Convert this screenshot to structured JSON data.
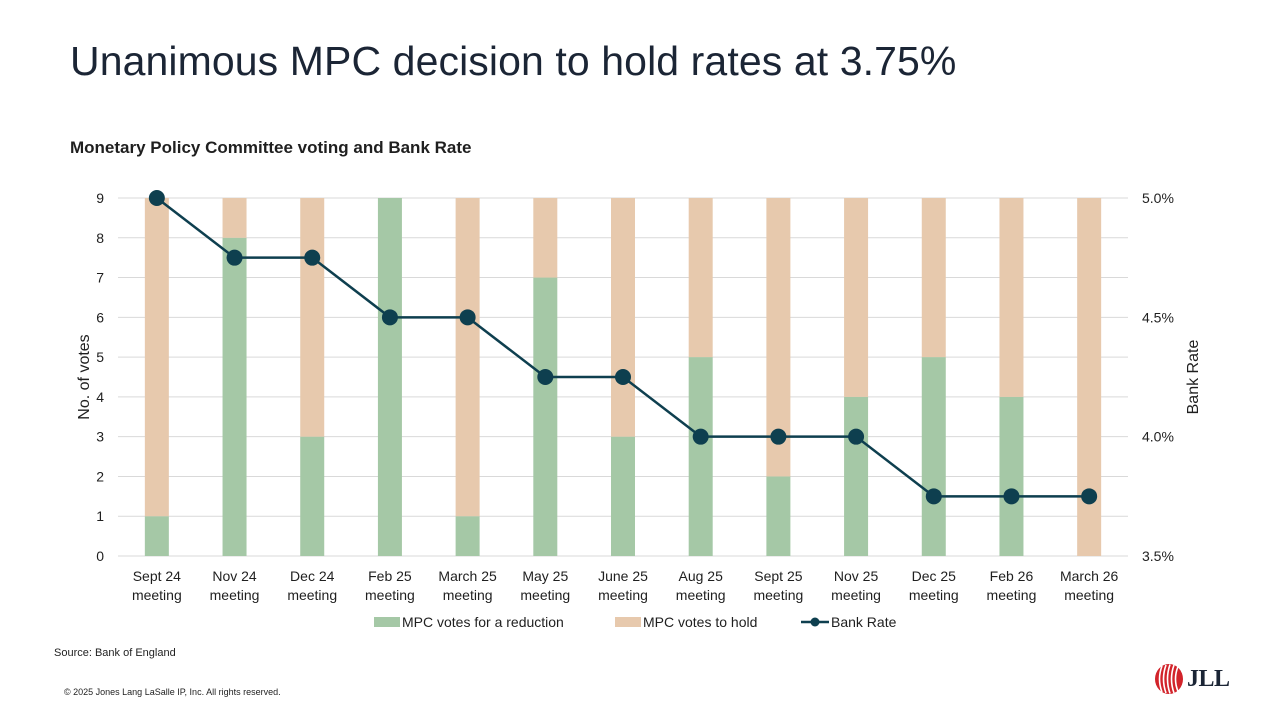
{
  "slide": {
    "title": "Unanimous MPC decision to hold rates at 3.75%",
    "subtitle": "Monetary Policy Committee voting and Bank Rate",
    "source": "Source: Bank of England",
    "copyright": "© 2025 Jones Lang LaSalle IP, Inc. All rights reserved.",
    "logo_text": "JLL"
  },
  "colors": {
    "reduction": "#a5c8a6",
    "hold": "#e7c9ad",
    "rate_line": "#0e3f4f",
    "grid": "#d9d9d9",
    "brand_red": "#d2232a"
  },
  "chart_data": {
    "type": "bar",
    "stacked": true,
    "categories": [
      [
        "Sept 24",
        "meeting"
      ],
      [
        "Nov 24",
        "meeting"
      ],
      [
        "Dec 24",
        "meeting"
      ],
      [
        "Feb 25",
        "meeting"
      ],
      [
        "March 25",
        "meeting"
      ],
      [
        "May 25",
        "meeting"
      ],
      [
        "June 25",
        "meeting"
      ],
      [
        "Aug 25",
        "meeting"
      ],
      [
        "Sept 25",
        "meeting"
      ],
      [
        "Nov 25",
        "meeting"
      ],
      [
        "Dec 25",
        "meeting"
      ],
      [
        "Feb 26",
        "meeting"
      ],
      [
        "March 26",
        "meeting"
      ]
    ],
    "series": [
      {
        "name": "MPC votes for a reduction",
        "type": "bar",
        "axis": "left",
        "values": [
          1,
          8,
          3,
          9,
          1,
          7,
          3,
          5,
          2,
          4,
          5,
          4,
          0
        ]
      },
      {
        "name": "MPC votes to hold",
        "type": "bar",
        "axis": "left",
        "values": [
          8,
          1,
          6,
          0,
          8,
          2,
          6,
          4,
          7,
          5,
          4,
          5,
          9
        ]
      },
      {
        "name": "Bank Rate",
        "type": "line",
        "axis": "right",
        "values": [
          5.0,
          4.75,
          4.75,
          4.5,
          4.5,
          4.25,
          4.25,
          4.0,
          4.0,
          4.0,
          3.75,
          3.75,
          3.75
        ]
      }
    ],
    "ylabel": "No. of votes",
    "ylim": [
      0,
      9
    ],
    "yticks": [
      "0",
      "1",
      "2",
      "3",
      "4",
      "5",
      "6",
      "7",
      "8",
      "9"
    ],
    "y2label": "Bank Rate",
    "y2lim": [
      3.5,
      5.0
    ],
    "y2ticks": [
      {
        "value": 3.5,
        "label": "3.5%"
      },
      {
        "value": 4.0,
        "label": "4.0%"
      },
      {
        "value": 4.5,
        "label": "4.5%"
      },
      {
        "value": 5.0,
        "label": "5.0%"
      }
    ],
    "grid": true,
    "legend_position": "bottom"
  }
}
